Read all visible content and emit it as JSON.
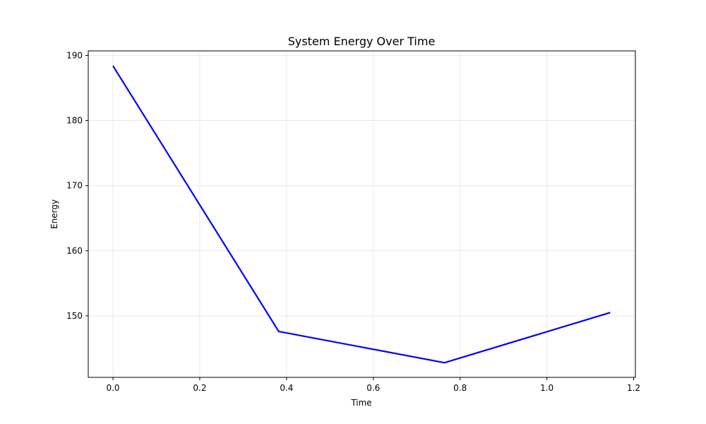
{
  "chart_data": {
    "type": "line",
    "title": "System Energy Over Time",
    "xlabel": "Time",
    "ylabel": "Energy",
    "xlim": [
      -0.057,
      1.204
    ],
    "ylim": [
      140.55,
      190.7
    ],
    "xticks": [
      0.0,
      0.2,
      0.4,
      0.6,
      0.8,
      1.0,
      1.2
    ],
    "xtick_labels": [
      "0.0",
      "0.2",
      "0.4",
      "0.6",
      "0.8",
      "1.0",
      "1.2"
    ],
    "yticks": [
      150,
      160,
      170,
      180,
      190
    ],
    "ytick_labels": [
      "150",
      "160",
      "170",
      "180",
      "190"
    ],
    "grid": true,
    "legend": "none",
    "series": [
      {
        "color": "#0000ff",
        "x": [
          0.0,
          0.382,
          0.764,
          1.146
        ],
        "y": [
          188.4,
          147.6,
          142.8,
          150.5
        ]
      }
    ]
  }
}
